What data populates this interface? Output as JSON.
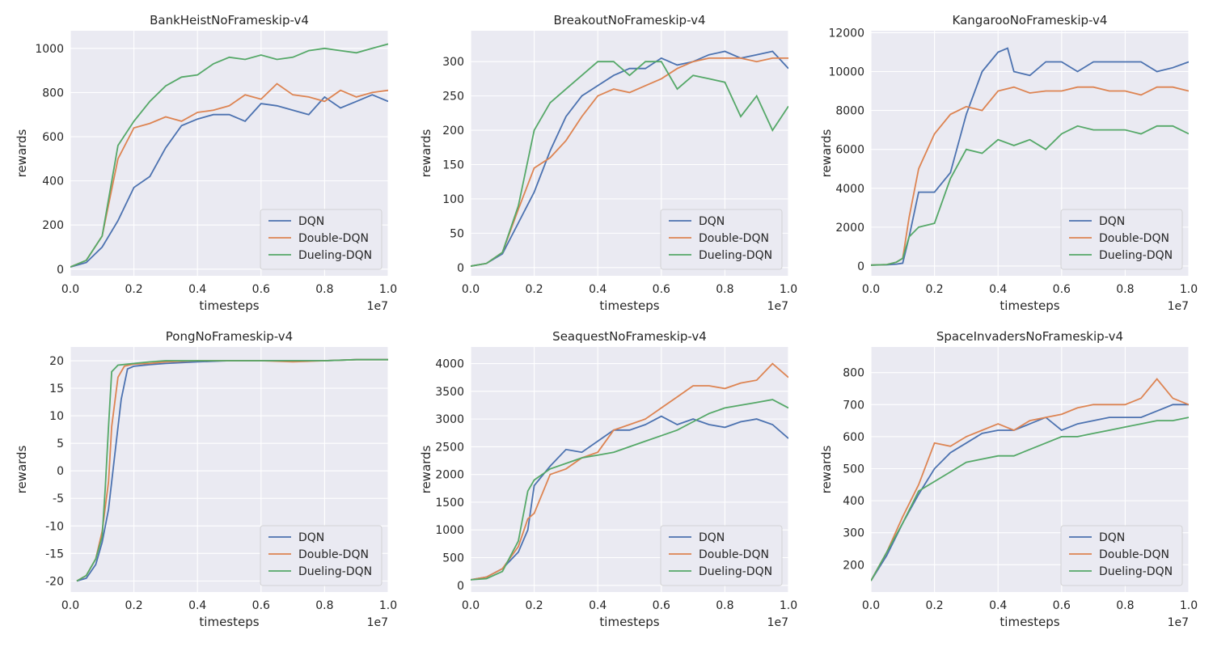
{
  "figure": {
    "background": "#ffffff"
  },
  "chart_data": [
    {
      "type": "line",
      "title": "BankHeistNoFrameskip-v4",
      "xlabel": "timesteps",
      "ylabel": "rewards",
      "x_multiplier": "1e7",
      "xlim": [
        0,
        1.0
      ],
      "ylim": [
        -30,
        1080
      ],
      "xticks": [
        "0.0",
        "0.2",
        "0.4",
        "0.6",
        "0.8",
        "1.0"
      ],
      "yticks": [
        0,
        200,
        400,
        600,
        800,
        1000
      ],
      "legend_position": "lower-right",
      "series": [
        {
          "name": "DQN",
          "color": "#4c72b0",
          "x": [
            0,
            0.05,
            0.1,
            0.15,
            0.2,
            0.25,
            0.3,
            0.35,
            0.4,
            0.45,
            0.5,
            0.55,
            0.6,
            0.65,
            0.7,
            0.75,
            0.8,
            0.85,
            0.9,
            0.95,
            1.0
          ],
          "y": [
            10,
            30,
            100,
            220,
            370,
            420,
            550,
            650,
            680,
            700,
            700,
            670,
            750,
            740,
            720,
            700,
            780,
            730,
            760,
            790,
            760
          ]
        },
        {
          "name": "Double-DQN",
          "color": "#dd8452",
          "x": [
            0,
            0.05,
            0.1,
            0.15,
            0.2,
            0.25,
            0.3,
            0.35,
            0.4,
            0.45,
            0.5,
            0.55,
            0.6,
            0.65,
            0.7,
            0.75,
            0.8,
            0.85,
            0.9,
            0.95,
            1.0
          ],
          "y": [
            10,
            40,
            150,
            500,
            640,
            660,
            690,
            670,
            710,
            720,
            740,
            790,
            770,
            840,
            790,
            780,
            760,
            810,
            780,
            800,
            810
          ]
        },
        {
          "name": "Dueling-DQN",
          "color": "#55a868",
          "x": [
            0,
            0.05,
            0.1,
            0.15,
            0.2,
            0.25,
            0.3,
            0.35,
            0.4,
            0.45,
            0.5,
            0.55,
            0.6,
            0.65,
            0.7,
            0.75,
            0.8,
            0.85,
            0.9,
            0.95,
            1.0
          ],
          "y": [
            10,
            40,
            150,
            560,
            670,
            760,
            830,
            870,
            880,
            930,
            960,
            950,
            970,
            950,
            960,
            990,
            1000,
            990,
            980,
            1000,
            1020
          ]
        }
      ]
    },
    {
      "type": "line",
      "title": "BreakoutNoFrameskip-v4",
      "xlabel": "timesteps",
      "ylabel": "rewards",
      "x_multiplier": "1e7",
      "xlim": [
        0,
        1.0
      ],
      "ylim": [
        -12,
        345
      ],
      "xticks": [
        "0.0",
        "0.2",
        "0.4",
        "0.6",
        "0.8",
        "1.0"
      ],
      "yticks": [
        0,
        50,
        100,
        150,
        200,
        250,
        300
      ],
      "legend_position": "lower-right",
      "series": [
        {
          "name": "DQN",
          "color": "#4c72b0",
          "x": [
            0,
            0.05,
            0.1,
            0.15,
            0.2,
            0.25,
            0.3,
            0.35,
            0.4,
            0.45,
            0.5,
            0.55,
            0.6,
            0.65,
            0.7,
            0.75,
            0.8,
            0.85,
            0.9,
            0.95,
            1.0
          ],
          "y": [
            2,
            6,
            20,
            65,
            110,
            170,
            220,
            250,
            265,
            280,
            290,
            290,
            305,
            295,
            300,
            310,
            315,
            305,
            310,
            315,
            290
          ]
        },
        {
          "name": "Double-DQN",
          "color": "#dd8452",
          "x": [
            0,
            0.05,
            0.1,
            0.15,
            0.2,
            0.25,
            0.3,
            0.35,
            0.4,
            0.45,
            0.5,
            0.55,
            0.6,
            0.65,
            0.7,
            0.75,
            0.8,
            0.85,
            0.9,
            0.95,
            1.0
          ],
          "y": [
            2,
            6,
            22,
            85,
            145,
            160,
            185,
            220,
            250,
            260,
            255,
            265,
            275,
            290,
            300,
            305,
            305,
            305,
            300,
            305,
            305
          ]
        },
        {
          "name": "Dueling-DQN",
          "color": "#55a868",
          "x": [
            0,
            0.05,
            0.1,
            0.15,
            0.2,
            0.25,
            0.3,
            0.35,
            0.4,
            0.45,
            0.5,
            0.55,
            0.6,
            0.65,
            0.7,
            0.75,
            0.8,
            0.85,
            0.9,
            0.95,
            1.0
          ],
          "y": [
            2,
            6,
            22,
            90,
            200,
            240,
            260,
            280,
            300,
            300,
            280,
            300,
            300,
            260,
            280,
            275,
            270,
            220,
            250,
            200,
            235
          ]
        }
      ]
    },
    {
      "type": "line",
      "title": "KangarooNoFrameskip-v4",
      "xlabel": "timesteps",
      "ylabel": "rewards",
      "x_multiplier": "1e7",
      "xlim": [
        0,
        1.0
      ],
      "ylim": [
        -500,
        12100
      ],
      "xticks": [
        "0.0",
        "0.2",
        "0.4",
        "0.6",
        "0.8",
        "1.0"
      ],
      "yticks": [
        0,
        2000,
        4000,
        6000,
        8000,
        10000,
        12000
      ],
      "legend_position": "lower-right",
      "series": [
        {
          "name": "DQN",
          "color": "#4c72b0",
          "x": [
            0,
            0.05,
            0.08,
            0.1,
            0.12,
            0.15,
            0.2,
            0.25,
            0.3,
            0.35,
            0.4,
            0.43,
            0.45,
            0.5,
            0.55,
            0.6,
            0.65,
            0.7,
            0.75,
            0.8,
            0.85,
            0.9,
            0.95,
            1.0
          ],
          "y": [
            50,
            60,
            100,
            150,
            1500,
            3800,
            3800,
            4800,
            7800,
            10000,
            11000,
            11200,
            10000,
            9800,
            10500,
            10500,
            10000,
            10500,
            10500,
            10500,
            10500,
            10000,
            10200,
            10500
          ]
        },
        {
          "name": "Double-DQN",
          "color": "#dd8452",
          "x": [
            0,
            0.05,
            0.08,
            0.1,
            0.12,
            0.15,
            0.2,
            0.25,
            0.3,
            0.35,
            0.4,
            0.45,
            0.5,
            0.55,
            0.6,
            0.65,
            0.7,
            0.75,
            0.8,
            0.85,
            0.9,
            0.95,
            1.0
          ],
          "y": [
            50,
            80,
            200,
            400,
            2500,
            5000,
            6800,
            7800,
            8200,
            8000,
            9000,
            9200,
            8900,
            9000,
            9000,
            9200,
            9200,
            9000,
            9000,
            8800,
            9200,
            9200,
            9000
          ]
        },
        {
          "name": "Dueling-DQN",
          "color": "#55a868",
          "x": [
            0,
            0.05,
            0.08,
            0.1,
            0.12,
            0.15,
            0.2,
            0.25,
            0.3,
            0.35,
            0.4,
            0.45,
            0.5,
            0.55,
            0.6,
            0.65,
            0.7,
            0.75,
            0.8,
            0.85,
            0.9,
            0.95,
            1.0
          ],
          "y": [
            50,
            80,
            200,
            400,
            1500,
            2000,
            2200,
            4500,
            6000,
            5800,
            6500,
            6200,
            6500,
            6000,
            6800,
            7200,
            7000,
            7000,
            7000,
            6800,
            7200,
            7200,
            6800
          ]
        }
      ]
    },
    {
      "type": "line",
      "title": "PongNoFrameskip-v4",
      "xlabel": "timesteps",
      "ylabel": "rewards",
      "x_multiplier": "1e7",
      "xlim": [
        0,
        1.0
      ],
      "ylim": [
        -22,
        22.5
      ],
      "xticks": [
        "0.0",
        "0.2",
        "0.4",
        "0.6",
        "0.8",
        "1.0"
      ],
      "yticks": [
        -20,
        -15,
        -10,
        -5,
        0,
        5,
        10,
        15,
        20
      ],
      "legend_position": "lower-right",
      "series": [
        {
          "name": "DQN",
          "color": "#4c72b0",
          "x": [
            0.02,
            0.05,
            0.08,
            0.1,
            0.12,
            0.14,
            0.16,
            0.18,
            0.2,
            0.25,
            0.3,
            0.4,
            0.5,
            0.6,
            0.7,
            0.8,
            0.9,
            1.0
          ],
          "y": [
            -20,
            -19.5,
            -17,
            -13,
            -7,
            3,
            13,
            18.5,
            19,
            19.3,
            19.5,
            19.8,
            20,
            20,
            20,
            20,
            20.2,
            20.2
          ]
        },
        {
          "name": "Double-DQN",
          "color": "#dd8452",
          "x": [
            0.02,
            0.05,
            0.08,
            0.1,
            0.12,
            0.13,
            0.15,
            0.17,
            0.2,
            0.25,
            0.3,
            0.4,
            0.5,
            0.6,
            0.7,
            0.8,
            0.9,
            1.0
          ],
          "y": [
            -20,
            -19,
            -16,
            -11,
            -2,
            8,
            17,
            19,
            19.4,
            19.5,
            19.8,
            20,
            20,
            20,
            19.8,
            20,
            20.2,
            20.2
          ]
        },
        {
          "name": "Dueling-DQN",
          "color": "#55a868",
          "x": [
            0.02,
            0.05,
            0.08,
            0.1,
            0.11,
            0.12,
            0.13,
            0.15,
            0.2,
            0.25,
            0.3,
            0.4,
            0.5,
            0.6,
            0.7,
            0.8,
            0.9,
            1.0
          ],
          "y": [
            -20,
            -19,
            -16,
            -12,
            -3,
            8,
            18,
            19.2,
            19.5,
            19.8,
            20,
            20,
            20,
            20,
            20,
            20,
            20.2,
            20.2
          ]
        }
      ]
    },
    {
      "type": "line",
      "title": "SeaquestNoFrameskip-v4",
      "xlabel": "timesteps",
      "ylabel": "rewards",
      "x_multiplier": "1e7",
      "xlim": [
        0,
        1.0
      ],
      "ylim": [
        -120,
        4300
      ],
      "xticks": [
        "0.0",
        "0.2",
        "0.4",
        "0.6",
        "0.8",
        "1.0"
      ],
      "yticks": [
        0,
        500,
        1000,
        1500,
        2000,
        2500,
        3000,
        3500,
        4000
      ],
      "legend_position": "lower-right",
      "series": [
        {
          "name": "DQN",
          "color": "#4c72b0",
          "x": [
            0,
            0.05,
            0.1,
            0.15,
            0.18,
            0.2,
            0.25,
            0.3,
            0.35,
            0.4,
            0.45,
            0.5,
            0.55,
            0.6,
            0.65,
            0.7,
            0.75,
            0.8,
            0.85,
            0.9,
            0.95,
            1.0
          ],
          "y": [
            100,
            150,
            300,
            600,
            1000,
            1800,
            2150,
            2450,
            2400,
            2600,
            2800,
            2800,
            2900,
            3050,
            2900,
            3000,
            2900,
            2850,
            2950,
            3000,
            2900,
            2650
          ]
        },
        {
          "name": "Double-DQN",
          "color": "#dd8452",
          "x": [
            0,
            0.05,
            0.1,
            0.15,
            0.18,
            0.2,
            0.25,
            0.3,
            0.35,
            0.4,
            0.45,
            0.5,
            0.55,
            0.6,
            0.65,
            0.7,
            0.75,
            0.8,
            0.85,
            0.9,
            0.95,
            1.0
          ],
          "y": [
            100,
            150,
            300,
            700,
            1200,
            1300,
            2000,
            2100,
            2300,
            2400,
            2800,
            2900,
            3000,
            3200,
            3400,
            3600,
            3600,
            3550,
            3650,
            3700,
            4000,
            3750
          ]
        },
        {
          "name": "Dueling-DQN",
          "color": "#55a868",
          "x": [
            0,
            0.05,
            0.1,
            0.15,
            0.18,
            0.2,
            0.25,
            0.3,
            0.35,
            0.4,
            0.45,
            0.5,
            0.55,
            0.6,
            0.65,
            0.7,
            0.75,
            0.8,
            0.85,
            0.9,
            0.95,
            1.0
          ],
          "y": [
            100,
            120,
            250,
            800,
            1700,
            1900,
            2100,
            2200,
            2300,
            2350,
            2400,
            2500,
            2600,
            2700,
            2800,
            2950,
            3100,
            3200,
            3250,
            3300,
            3350,
            3200
          ]
        }
      ]
    },
    {
      "type": "line",
      "title": "SpaceInvadersNoFrameskip-v4",
      "xlabel": "timesteps",
      "ylabel": "rewards",
      "x_multiplier": "1e7",
      "xlim": [
        0,
        1.0
      ],
      "ylim": [
        115,
        880
      ],
      "xticks": [
        "0.0",
        "0.2",
        "0.4",
        "0.6",
        "0.8",
        "1.0"
      ],
      "yticks": [
        200,
        300,
        400,
        500,
        600,
        700,
        800
      ],
      "legend_position": "lower-right",
      "series": [
        {
          "name": "DQN",
          "color": "#4c72b0",
          "x": [
            0,
            0.05,
            0.1,
            0.15,
            0.2,
            0.25,
            0.3,
            0.35,
            0.4,
            0.45,
            0.5,
            0.55,
            0.6,
            0.65,
            0.7,
            0.75,
            0.8,
            0.85,
            0.9,
            0.95,
            1.0
          ],
          "y": [
            150,
            230,
            330,
            420,
            500,
            550,
            580,
            610,
            620,
            620,
            640,
            660,
            620,
            640,
            650,
            660,
            660,
            660,
            680,
            700,
            700
          ]
        },
        {
          "name": "Double-DQN",
          "color": "#dd8452",
          "x": [
            0,
            0.05,
            0.1,
            0.15,
            0.2,
            0.25,
            0.3,
            0.35,
            0.4,
            0.45,
            0.5,
            0.55,
            0.6,
            0.65,
            0.7,
            0.75,
            0.8,
            0.85,
            0.9,
            0.95,
            1.0
          ],
          "y": [
            150,
            240,
            350,
            450,
            580,
            570,
            600,
            620,
            640,
            620,
            650,
            660,
            670,
            690,
            700,
            700,
            700,
            720,
            780,
            720,
            700
          ]
        },
        {
          "name": "Dueling-DQN",
          "color": "#55a868",
          "x": [
            0,
            0.05,
            0.1,
            0.15,
            0.2,
            0.25,
            0.3,
            0.35,
            0.4,
            0.45,
            0.5,
            0.55,
            0.6,
            0.65,
            0.7,
            0.75,
            0.8,
            0.85,
            0.9,
            0.95,
            1.0
          ],
          "y": [
            150,
            240,
            330,
            430,
            460,
            490,
            520,
            530,
            540,
            540,
            560,
            580,
            600,
            600,
            610,
            620,
            630,
            640,
            650,
            650,
            660
          ]
        }
      ]
    }
  ]
}
